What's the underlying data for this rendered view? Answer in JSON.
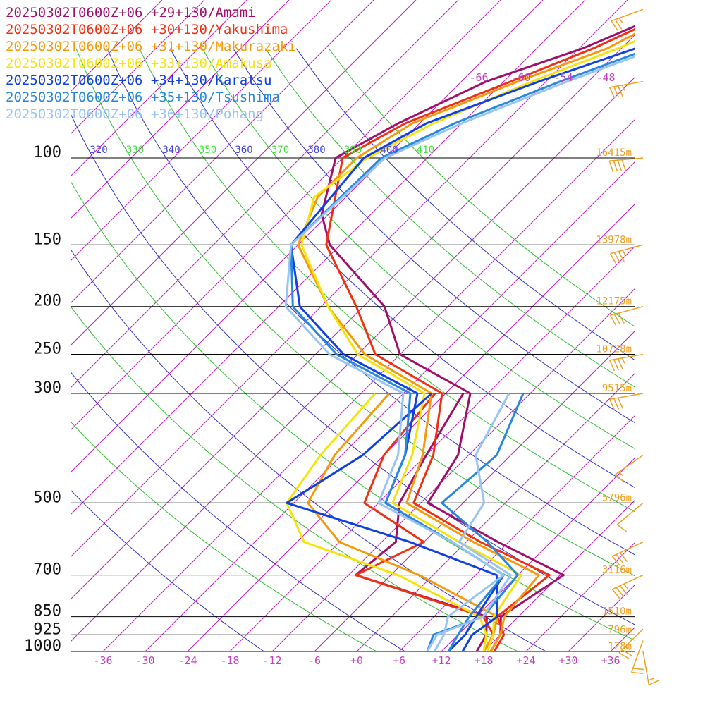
{
  "chart_data": {
    "type": "line",
    "title": "",
    "xlabel": "",
    "ylabel": "",
    "x_axis": {
      "ticks": [
        "-36",
        "-30",
        "-24",
        "-18",
        "-12",
        "-6",
        "+0",
        "+6",
        "+12",
        "+18",
        "+24",
        "+30",
        "+36"
      ],
      "tick_values": [
        -36,
        -30,
        -24,
        -18,
        -12,
        -6,
        0,
        6,
        12,
        18,
        24,
        30,
        36
      ],
      "range": [
        -40,
        40
      ]
    },
    "y_axis": {
      "scale": "log",
      "direction": "decreasing upward",
      "ticks": [
        "100",
        "150",
        "200",
        "250",
        "300",
        "500",
        "700",
        "850",
        "925",
        "1000"
      ],
      "tick_values": [
        100,
        150,
        200,
        250,
        300,
        500,
        700,
        850,
        925,
        1000
      ],
      "range": [
        1000,
        100
      ]
    },
    "heights": [
      {
        "p": 100,
        "label": "16415m"
      },
      {
        "p": 150,
        "label": "13978m"
      },
      {
        "p": 200,
        "label": "12175m"
      },
      {
        "p": 250,
        "label": "10728m"
      },
      {
        "p": 300,
        "label": "9515m"
      },
      {
        "p": 500,
        "label": "5796m"
      },
      {
        "p": 700,
        "label": "3116m"
      },
      {
        "p": 850,
        "label": "1510m"
      },
      {
        "p": 925,
        "label": "796m"
      },
      {
        "p": 1000,
        "label": "128m"
      }
    ],
    "isotherm_labels": [
      "-66",
      "-60",
      "-54",
      "-48"
    ],
    "theta_labels": [
      {
        "text": "320",
        "color": "#4040e0"
      },
      {
        "text": "330",
        "color": "#40e040"
      },
      {
        "text": "340",
        "color": "#4040e0"
      },
      {
        "text": "350",
        "color": "#40e040"
      },
      {
        "text": "360",
        "color": "#4040e0"
      },
      {
        "text": "370",
        "color": "#40e040"
      },
      {
        "text": "380",
        "color": "#4040e0"
      },
      {
        "text": "390",
        "color": "#40e040"
      },
      {
        "text": "400",
        "color": "#4040e0"
      },
      {
        "text": "410",
        "color": "#40e040"
      }
    ],
    "colors": {
      "isotherm": "#c020c0",
      "dry_adiabat": "#3030d0",
      "moist_adiabat": "#30c030",
      "isobar": "#000000",
      "height_label": "#f0a020",
      "tick_label": "#c040c0",
      "wind_barb": "#f0a020"
    },
    "series": [
      {
        "name": "20250302T0600Z+06 +29+130/Amami",
        "color": "#a0106a",
        "temperature": [
          [
            1000,
            19
          ],
          [
            925,
            18
          ],
          [
            850,
            15.5
          ],
          [
            700,
            18.5
          ],
          [
            600,
            4.5
          ],
          [
            500,
            -11
          ],
          [
            400,
            -13.5
          ],
          [
            300,
            -20.5
          ],
          [
            250,
            -36
          ],
          [
            200,
            -45
          ],
          [
            150,
            -61.5
          ],
          [
            130,
            -67
          ],
          [
            100,
            -73
          ],
          [
            85,
            -69
          ],
          [
            70,
            -62.5
          ],
          [
            60,
            -53.5
          ],
          [
            50,
            -46
          ]
        ],
        "dewpoint": [
          [
            1000,
            17
          ],
          [
            925,
            16
          ],
          [
            850,
            13.5
          ],
          [
            700,
            -11
          ],
          [
            600,
            -10
          ],
          [
            500,
            -15
          ],
          [
            400,
            -18
          ],
          [
            300,
            -21.5
          ]
        ]
      },
      {
        "name": "20250302T0600Z+06 +30+130/Yakushima",
        "color": "#f03010",
        "temperature": [
          [
            1000,
            19.5
          ],
          [
            925,
            18.5
          ],
          [
            850,
            15
          ],
          [
            700,
            16.5
          ],
          [
            600,
            2
          ],
          [
            500,
            -13
          ],
          [
            400,
            -17
          ],
          [
            300,
            -24.5
          ],
          [
            250,
            -39.5
          ],
          [
            200,
            -49
          ],
          [
            150,
            -62
          ],
          [
            100,
            -72
          ],
          [
            85,
            -68
          ],
          [
            70,
            -59
          ],
          [
            60,
            -52
          ],
          [
            50,
            -45.5
          ]
        ],
        "dewpoint": [
          [
            1000,
            18
          ],
          [
            925,
            17
          ],
          [
            850,
            13
          ],
          [
            700,
            -11
          ],
          [
            600,
            -6
          ],
          [
            500,
            -20
          ],
          [
            400,
            -24
          ],
          [
            300,
            -25.5
          ]
        ]
      },
      {
        "name": "20250302T0600Z+06 +31+130/Makurazaki",
        "color": "#f59a0a",
        "temperature": [
          [
            1000,
            19
          ],
          [
            925,
            18
          ],
          [
            850,
            16
          ],
          [
            700,
            15
          ],
          [
            600,
            1
          ],
          [
            500,
            -14
          ],
          [
            400,
            -18.5
          ],
          [
            300,
            -26
          ],
          [
            250,
            -41
          ],
          [
            200,
            -53
          ],
          [
            150,
            -66
          ],
          [
            120,
            -70
          ],
          [
            100,
            -70
          ],
          [
            85,
            -67
          ],
          [
            70,
            -58
          ],
          [
            60,
            -50
          ],
          [
            50,
            -45
          ]
        ],
        "dewpoint": [
          [
            1000,
            18
          ],
          [
            925,
            17
          ],
          [
            850,
            15
          ],
          [
            700,
            -2
          ],
          [
            600,
            -18
          ],
          [
            500,
            -28
          ],
          [
            400,
            -31
          ],
          [
            300,
            -32
          ]
        ]
      },
      {
        "name": "20250302T0600Z+06 +33+130/Amakusa",
        "color": "#f5e40a",
        "temperature": [
          [
            1000,
            18.5
          ],
          [
            925,
            17
          ],
          [
            850,
            14.5
          ],
          [
            700,
            12.5
          ],
          [
            600,
            -1
          ],
          [
            500,
            -16
          ],
          [
            400,
            -20
          ],
          [
            300,
            -27
          ],
          [
            250,
            -42
          ],
          [
            200,
            -53
          ],
          [
            150,
            -65.5
          ],
          [
            120,
            -70.5
          ],
          [
            100,
            -68.5
          ],
          [
            85,
            -64
          ],
          [
            70,
            -56
          ],
          [
            60,
            -48.5
          ],
          [
            50,
            -41
          ]
        ],
        "dewpoint": [
          [
            1000,
            18
          ],
          [
            925,
            16
          ],
          [
            850,
            12.5
          ],
          [
            700,
            -5
          ],
          [
            600,
            -23
          ],
          [
            500,
            -31
          ],
          [
            400,
            -33
          ],
          [
            300,
            -34
          ]
        ]
      },
      {
        "name": "20250302T0600Z+06 +34+130/Karatsu",
        "color": "#1040e0",
        "temperature": [
          [
            1000,
            13
          ],
          [
            925,
            13
          ],
          [
            850,
            12
          ],
          [
            700,
            10
          ],
          [
            600,
            -2
          ],
          [
            500,
            -17
          ],
          [
            400,
            -21
          ],
          [
            300,
            -28
          ],
          [
            250,
            -44
          ],
          [
            200,
            -57
          ],
          [
            150,
            -67
          ],
          [
            100,
            -69
          ],
          [
            85,
            -65
          ],
          [
            70,
            -55
          ],
          [
            60,
            -46
          ],
          [
            50,
            -39
          ]
        ],
        "dewpoint": [
          [
            1000,
            15
          ],
          [
            925,
            14
          ],
          [
            850,
            15
          ],
          [
            700,
            9
          ],
          [
            600,
            -8
          ],
          [
            500,
            -31
          ],
          [
            400,
            -27
          ],
          [
            300,
            -26
          ]
        ]
      },
      {
        "name": "20250302T0600Z+06 +35+130/Tsushima",
        "color": "#2888e0",
        "temperature": [
          [
            1000,
            13
          ],
          [
            925,
            12
          ],
          [
            850,
            11
          ],
          [
            700,
            10
          ],
          [
            600,
            -2
          ],
          [
            500,
            -17
          ],
          [
            400,
            -21
          ],
          [
            300,
            -29
          ],
          [
            250,
            -45
          ],
          [
            200,
            -58
          ],
          [
            150,
            -67
          ],
          [
            100,
            -66.5
          ],
          [
            85,
            -61
          ],
          [
            70,
            -52
          ],
          [
            60,
            -44
          ],
          [
            50,
            -38
          ]
        ],
        "dewpoint": [
          [
            1000,
            10
          ],
          [
            925,
            8.5
          ],
          [
            850,
            13
          ],
          [
            700,
            12
          ],
          [
            600,
            3
          ],
          [
            500,
            -9
          ],
          [
            400,
            -8
          ],
          [
            300,
            -13
          ]
        ]
      },
      {
        "name": "20250302T0600Z+06 +36+130/Pohang",
        "color": "#98c4f4",
        "temperature": [
          [
            1000,
            11
          ],
          [
            925,
            10
          ],
          [
            850,
            8
          ],
          [
            700,
            10
          ],
          [
            600,
            -2
          ],
          [
            500,
            -18
          ],
          [
            400,
            -22
          ],
          [
            300,
            -30
          ],
          [
            250,
            -46
          ],
          [
            200,
            -59
          ],
          [
            150,
            -67
          ],
          [
            100,
            -66
          ],
          [
            85,
            -60
          ],
          [
            70,
            -51
          ],
          [
            60,
            -43
          ],
          [
            50,
            -37
          ]
        ],
        "dewpoint": [
          [
            1000,
            10
          ],
          [
            925,
            9
          ],
          [
            850,
            13
          ],
          [
            700,
            11
          ],
          [
            600,
            -1
          ],
          [
            500,
            -3
          ],
          [
            400,
            -11
          ],
          [
            300,
            -15
          ]
        ]
      }
    ],
    "wind_barbs": [
      {
        "p": 50,
        "dir": 250,
        "spd": 25
      },
      {
        "p": 70,
        "dir": 260,
        "spd": 35
      },
      {
        "p": 100,
        "dir": 265,
        "spd": 40
      },
      {
        "p": 150,
        "dir": 255,
        "spd": 35
      },
      {
        "p": 200,
        "dir": 255,
        "spd": 30
      },
      {
        "p": 250,
        "dir": 260,
        "spd": 35
      },
      {
        "p": 300,
        "dir": 260,
        "spd": 30
      },
      {
        "p": 400,
        "dir": 235,
        "spd": 15
      },
      {
        "p": 500,
        "dir": 230,
        "spd": 10
      },
      {
        "p": 600,
        "dir": 245,
        "spd": 30
      },
      {
        "p": 700,
        "dir": 245,
        "spd": 35
      },
      {
        "p": 900,
        "dir": 225,
        "spd": 25
      },
      {
        "p": 950,
        "dir": 200,
        "spd": 20
      },
      {
        "p": 1000,
        "dir": 170,
        "spd": 15
      }
    ]
  }
}
